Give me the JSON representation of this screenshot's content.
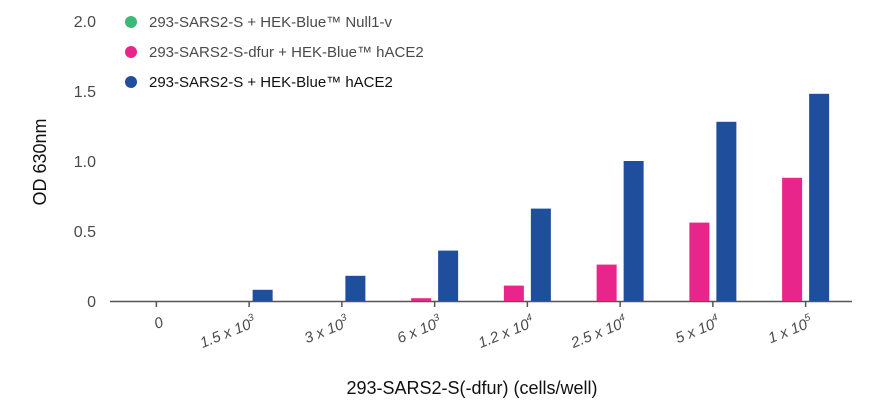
{
  "chart_data": {
    "type": "bar",
    "categories": [
      {
        "base": "0",
        "exp": ""
      },
      {
        "base": "1.5 x 10",
        "exp": "3"
      },
      {
        "base": "3 x 10",
        "exp": "3"
      },
      {
        "base": "6 x 10",
        "exp": "3"
      },
      {
        "base": "1.2 x 10",
        "exp": "4"
      },
      {
        "base": "2.5 x 10",
        "exp": "4"
      },
      {
        "base": "5 x 10",
        "exp": "4"
      },
      {
        "base": "1 x 10",
        "exp": "5"
      }
    ],
    "series": [
      {
        "name": "293-SARS2-S + HEK-Blue™ Null1-v",
        "color": "#3cb878",
        "values": [
          0,
          0,
          0,
          0,
          0,
          0,
          0,
          0
        ]
      },
      {
        "name": "293-SARS2-S-dfur + HEK-Blue™ hACE2",
        "color": "#e8258a",
        "values": [
          0,
          0,
          0,
          0.02,
          0.11,
          0.26,
          0.56,
          0.88
        ]
      },
      {
        "name": "293-SARS2-S + HEK-Blue™ hACE2",
        "color": "#1f4e9c",
        "values": [
          0,
          0.08,
          0.18,
          0.36,
          0.66,
          1.0,
          1.28,
          1.48
        ]
      }
    ],
    "xlabel": "293-SARS2-S(-dfur) (cells/well)",
    "ylabel": "OD 630nm",
    "ylim": [
      0,
      2.0
    ],
    "yticks": [
      {
        "value": 0,
        "label": "0"
      },
      {
        "value": 0.5,
        "label": "0.5"
      },
      {
        "value": 1.0,
        "label": "1.0"
      },
      {
        "value": 1.5,
        "label": "1.5"
      },
      {
        "value": 2.0,
        "label": "2.0"
      }
    ],
    "grid": false,
    "legend_position": "top-left"
  }
}
